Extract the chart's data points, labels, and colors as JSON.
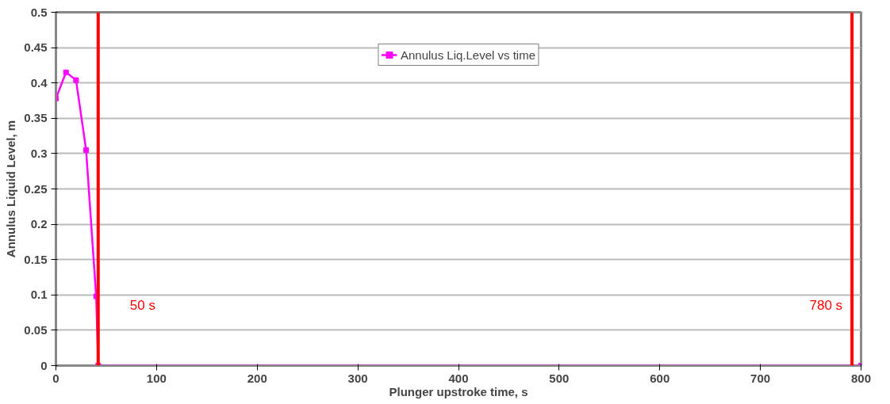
{
  "chart_data": {
    "type": "line",
    "xlabel": "Plunger upstroke time, s",
    "ylabel": "Annulus Liquid Level, m",
    "series": [
      {
        "name": "Annulus Liq.Level vs time",
        "color": "#ff00ff",
        "x": [
          0,
          10,
          20,
          30,
          40,
          42,
          800
        ],
        "values": [
          0.378,
          0.415,
          0.404,
          0.305,
          0.098,
          0,
          0
        ]
      }
    ],
    "xlim": [
      0,
      800
    ],
    "xticks": [
      0,
      100,
      200,
      300,
      400,
      500,
      600,
      700,
      800
    ],
    "ylim": [
      0,
      0.5
    ],
    "yticks": [
      0,
      0.05,
      0.1,
      0.15,
      0.2,
      0.25,
      0.3,
      0.35,
      0.4,
      0.45,
      0.5
    ],
    "grid": "y",
    "legend": "top",
    "marker": "square",
    "line_style": "solid",
    "ref_lines": [
      {
        "axis": "x",
        "value": 42,
        "label": "50 s",
        "color": "#ff0000"
      },
      {
        "axis": "x",
        "value": 791,
        "label": "780 s",
        "color": "#ff0000"
      }
    ]
  }
}
